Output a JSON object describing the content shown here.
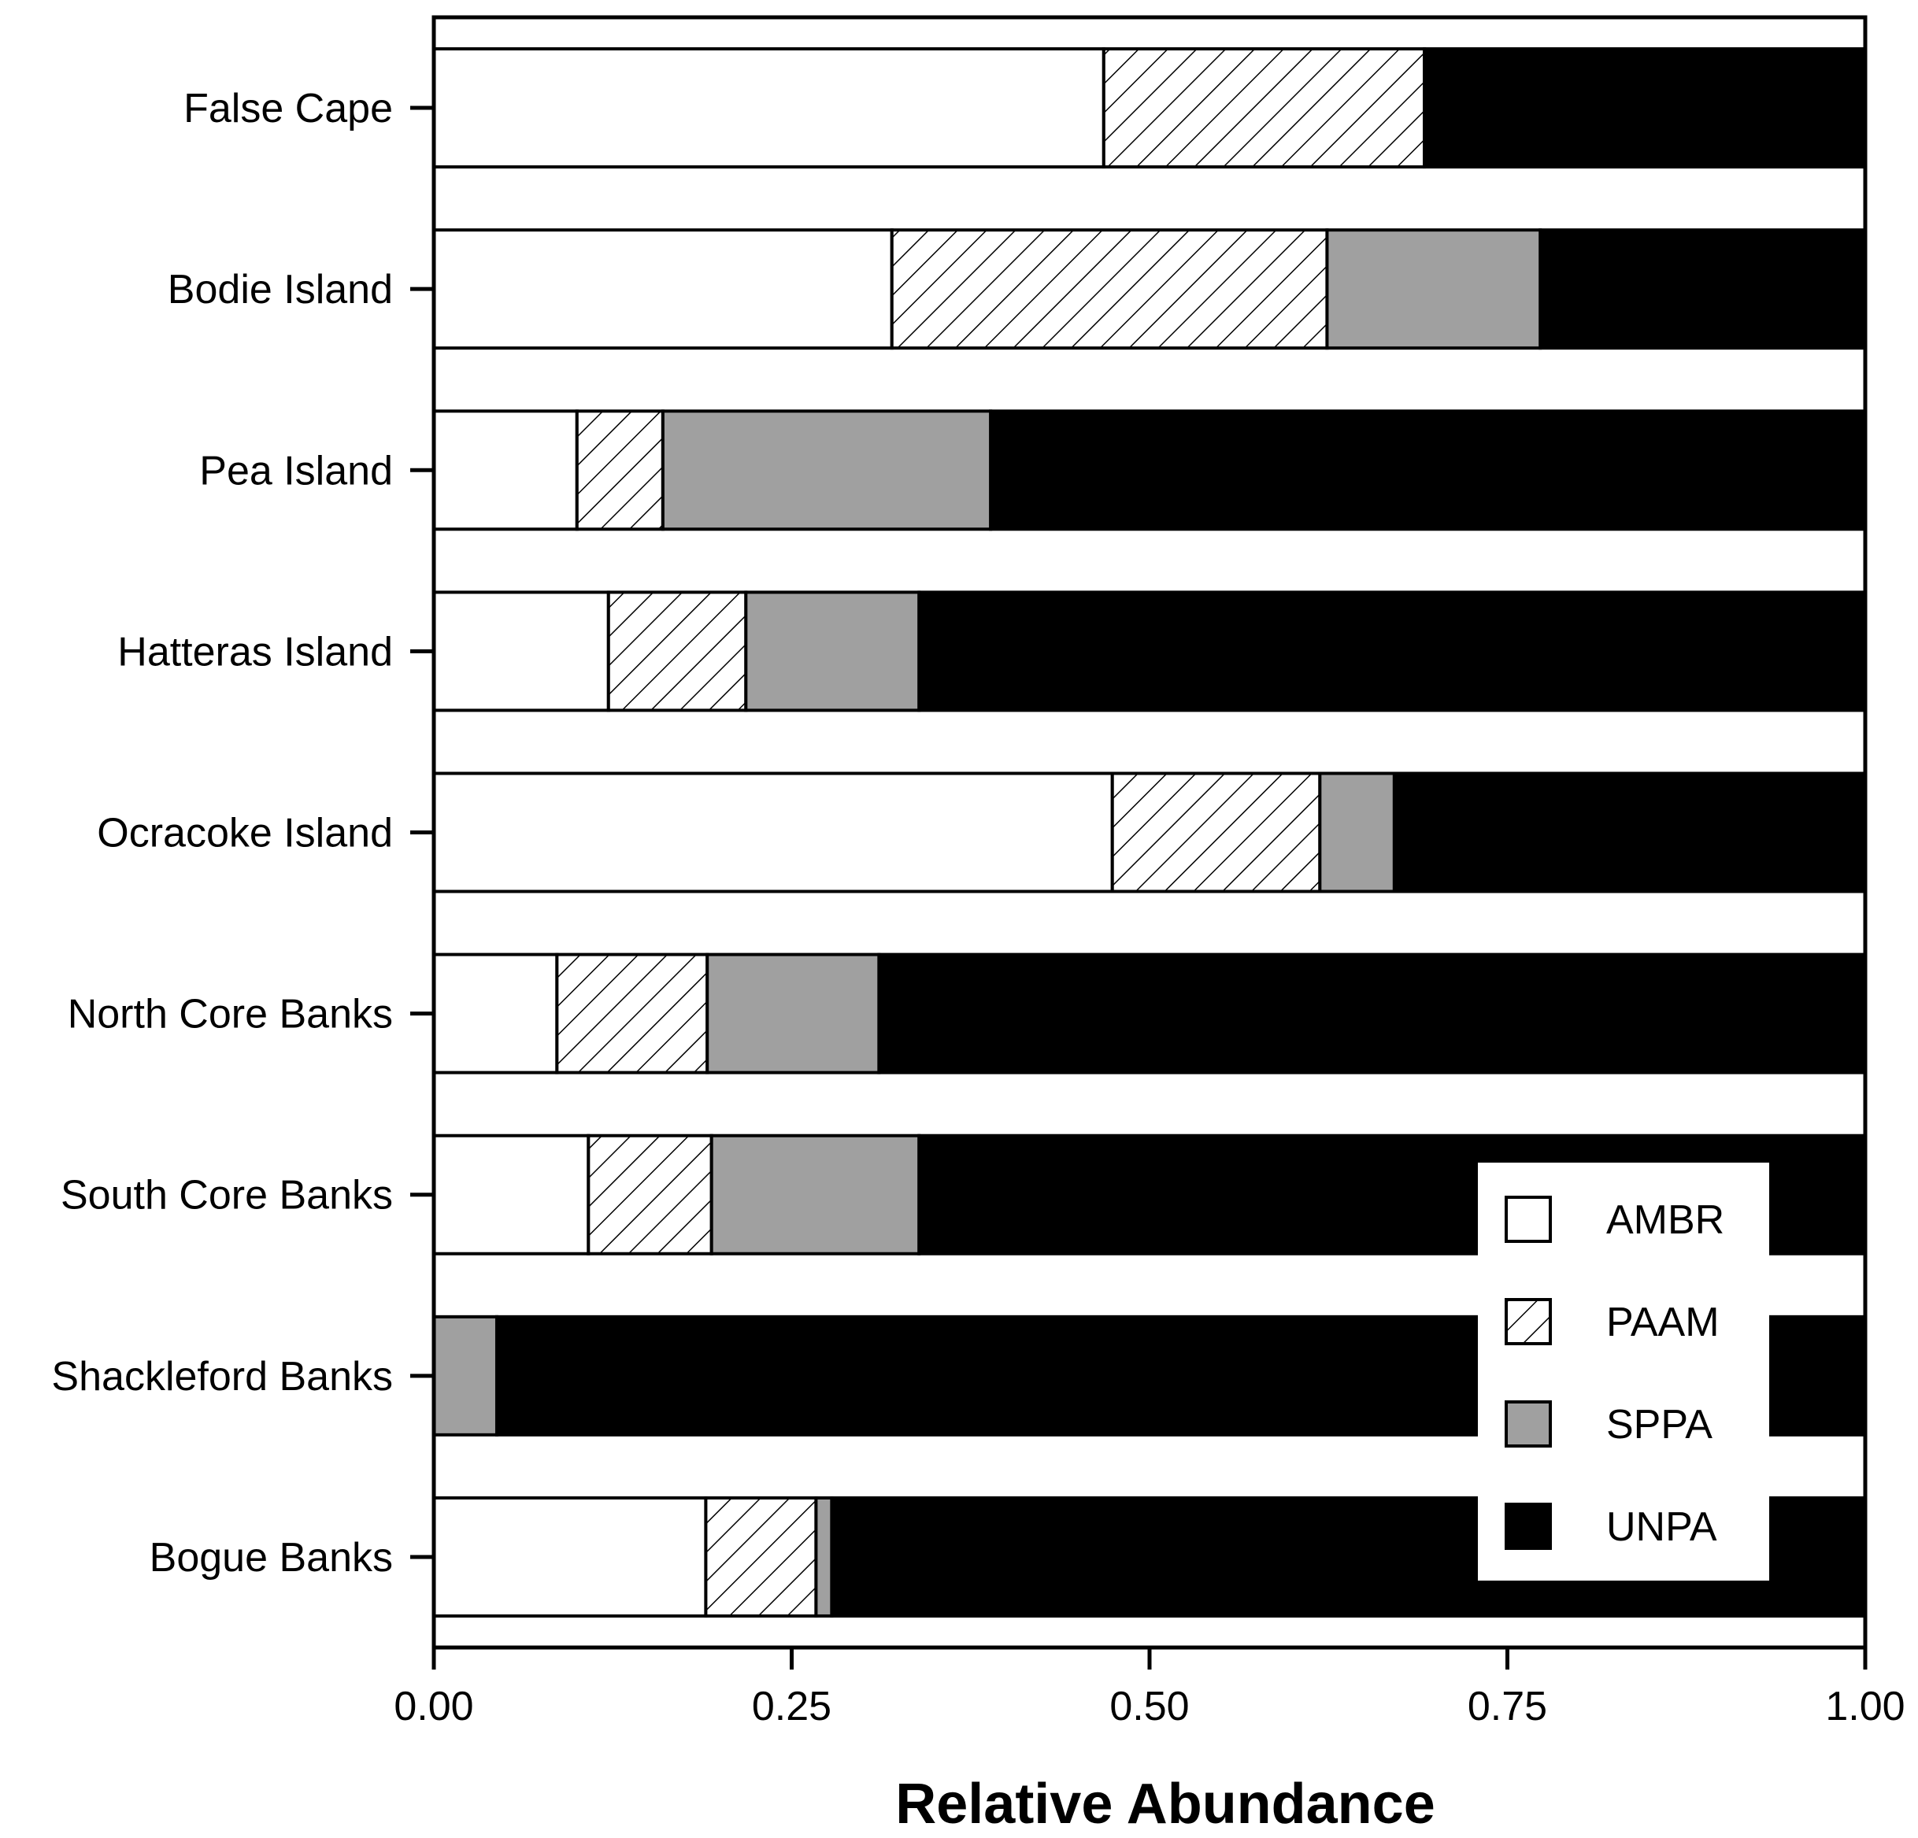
{
  "chart_data": {
    "type": "bar",
    "orientation": "horizontal",
    "stacked": true,
    "title": "",
    "xlabel": "Relative Abundance",
    "ylabel": "",
    "xlim": [
      0,
      1
    ],
    "xticks": [
      "0.00",
      "0.25",
      "0.50",
      "0.75",
      "1.00"
    ],
    "xtick_values": [
      0,
      0.25,
      0.5,
      0.75,
      1.0
    ],
    "grid": false,
    "legend_position": "bottom-right",
    "categories": [
      "False Cape",
      "Bodie Island",
      "Pea Island",
      "Hatteras Island",
      "Ocracoke Island",
      "North Core Banks",
      "South Core Banks",
      "Shackleford Banks",
      "Bogue Banks"
    ],
    "series": [
      {
        "name": "AMBR",
        "fill": "white",
        "color": "#ffffff",
        "values": [
          0.468,
          0.32,
          0.1,
          0.122,
          0.474,
          0.086,
          0.108,
          0.0,
          0.19
        ]
      },
      {
        "name": "PAAM",
        "fill": "hatch",
        "color": "#ffffff",
        "values": [
          0.224,
          0.304,
          0.06,
          0.096,
          0.145,
          0.105,
          0.086,
          0.0,
          0.077
        ]
      },
      {
        "name": "SPPA",
        "fill": "gray",
        "color": "#a0a0a0",
        "values": [
          0.0,
          0.149,
          0.229,
          0.121,
          0.052,
          0.12,
          0.145,
          0.044,
          0.011
        ]
      },
      {
        "name": "UNPA",
        "fill": "black",
        "color": "#000000",
        "values": [
          0.308,
          0.227,
          0.611,
          0.661,
          0.329,
          0.689,
          0.661,
          0.956,
          0.722
        ]
      }
    ]
  }
}
